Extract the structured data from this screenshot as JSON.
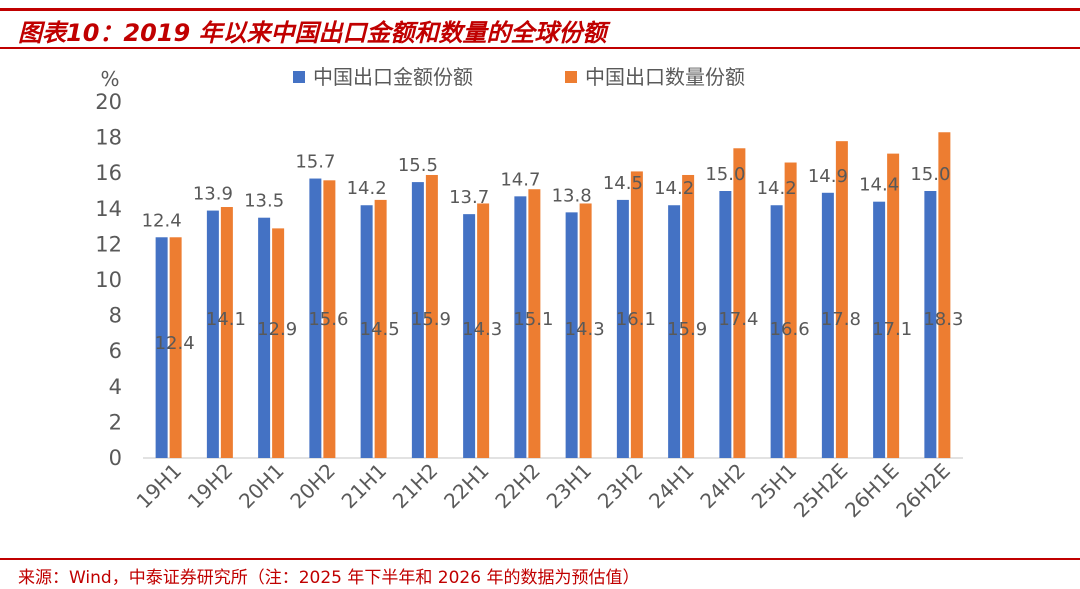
{
  "title": "图表10：2019 年以来中国出口金额和数量的全球份额",
  "source": "来源：Wind，中泰证券研究所（注：2025 年下半年和 2026 年的数据为预估值）",
  "colors": {
    "series1": "#4472c4",
    "series2": "#ed7d31",
    "accent": "#c00000",
    "text": "#595959",
    "axis": "#d9d9d9"
  },
  "chart_data": {
    "type": "bar",
    "ylabel": "%",
    "ylim": [
      0,
      20
    ],
    "yticks": [
      0,
      2,
      4,
      6,
      8,
      10,
      12,
      14,
      16,
      18,
      20
    ],
    "grid": false,
    "legend_position": "top-center",
    "categories": [
      "19H1",
      "19H2",
      "20H1",
      "20H2",
      "21H1",
      "21H2",
      "22H1",
      "22H2",
      "23H1",
      "23H2",
      "24H1",
      "24H2",
      "25H1",
      "25H2E",
      "26H1E",
      "26H2E"
    ],
    "series": [
      {
        "name": "中国出口金额份额",
        "values": [
          12.4,
          13.9,
          13.5,
          15.7,
          14.2,
          15.5,
          13.7,
          14.7,
          13.8,
          14.5,
          14.2,
          15.0,
          14.2,
          14.9,
          14.4,
          15.0
        ]
      },
      {
        "name": "中国出口数量份额",
        "values": [
          12.4,
          14.1,
          12.9,
          15.6,
          14.5,
          15.9,
          14.3,
          15.1,
          14.3,
          16.1,
          15.9,
          17.4,
          16.6,
          17.8,
          17.1,
          18.3
        ]
      }
    ]
  }
}
